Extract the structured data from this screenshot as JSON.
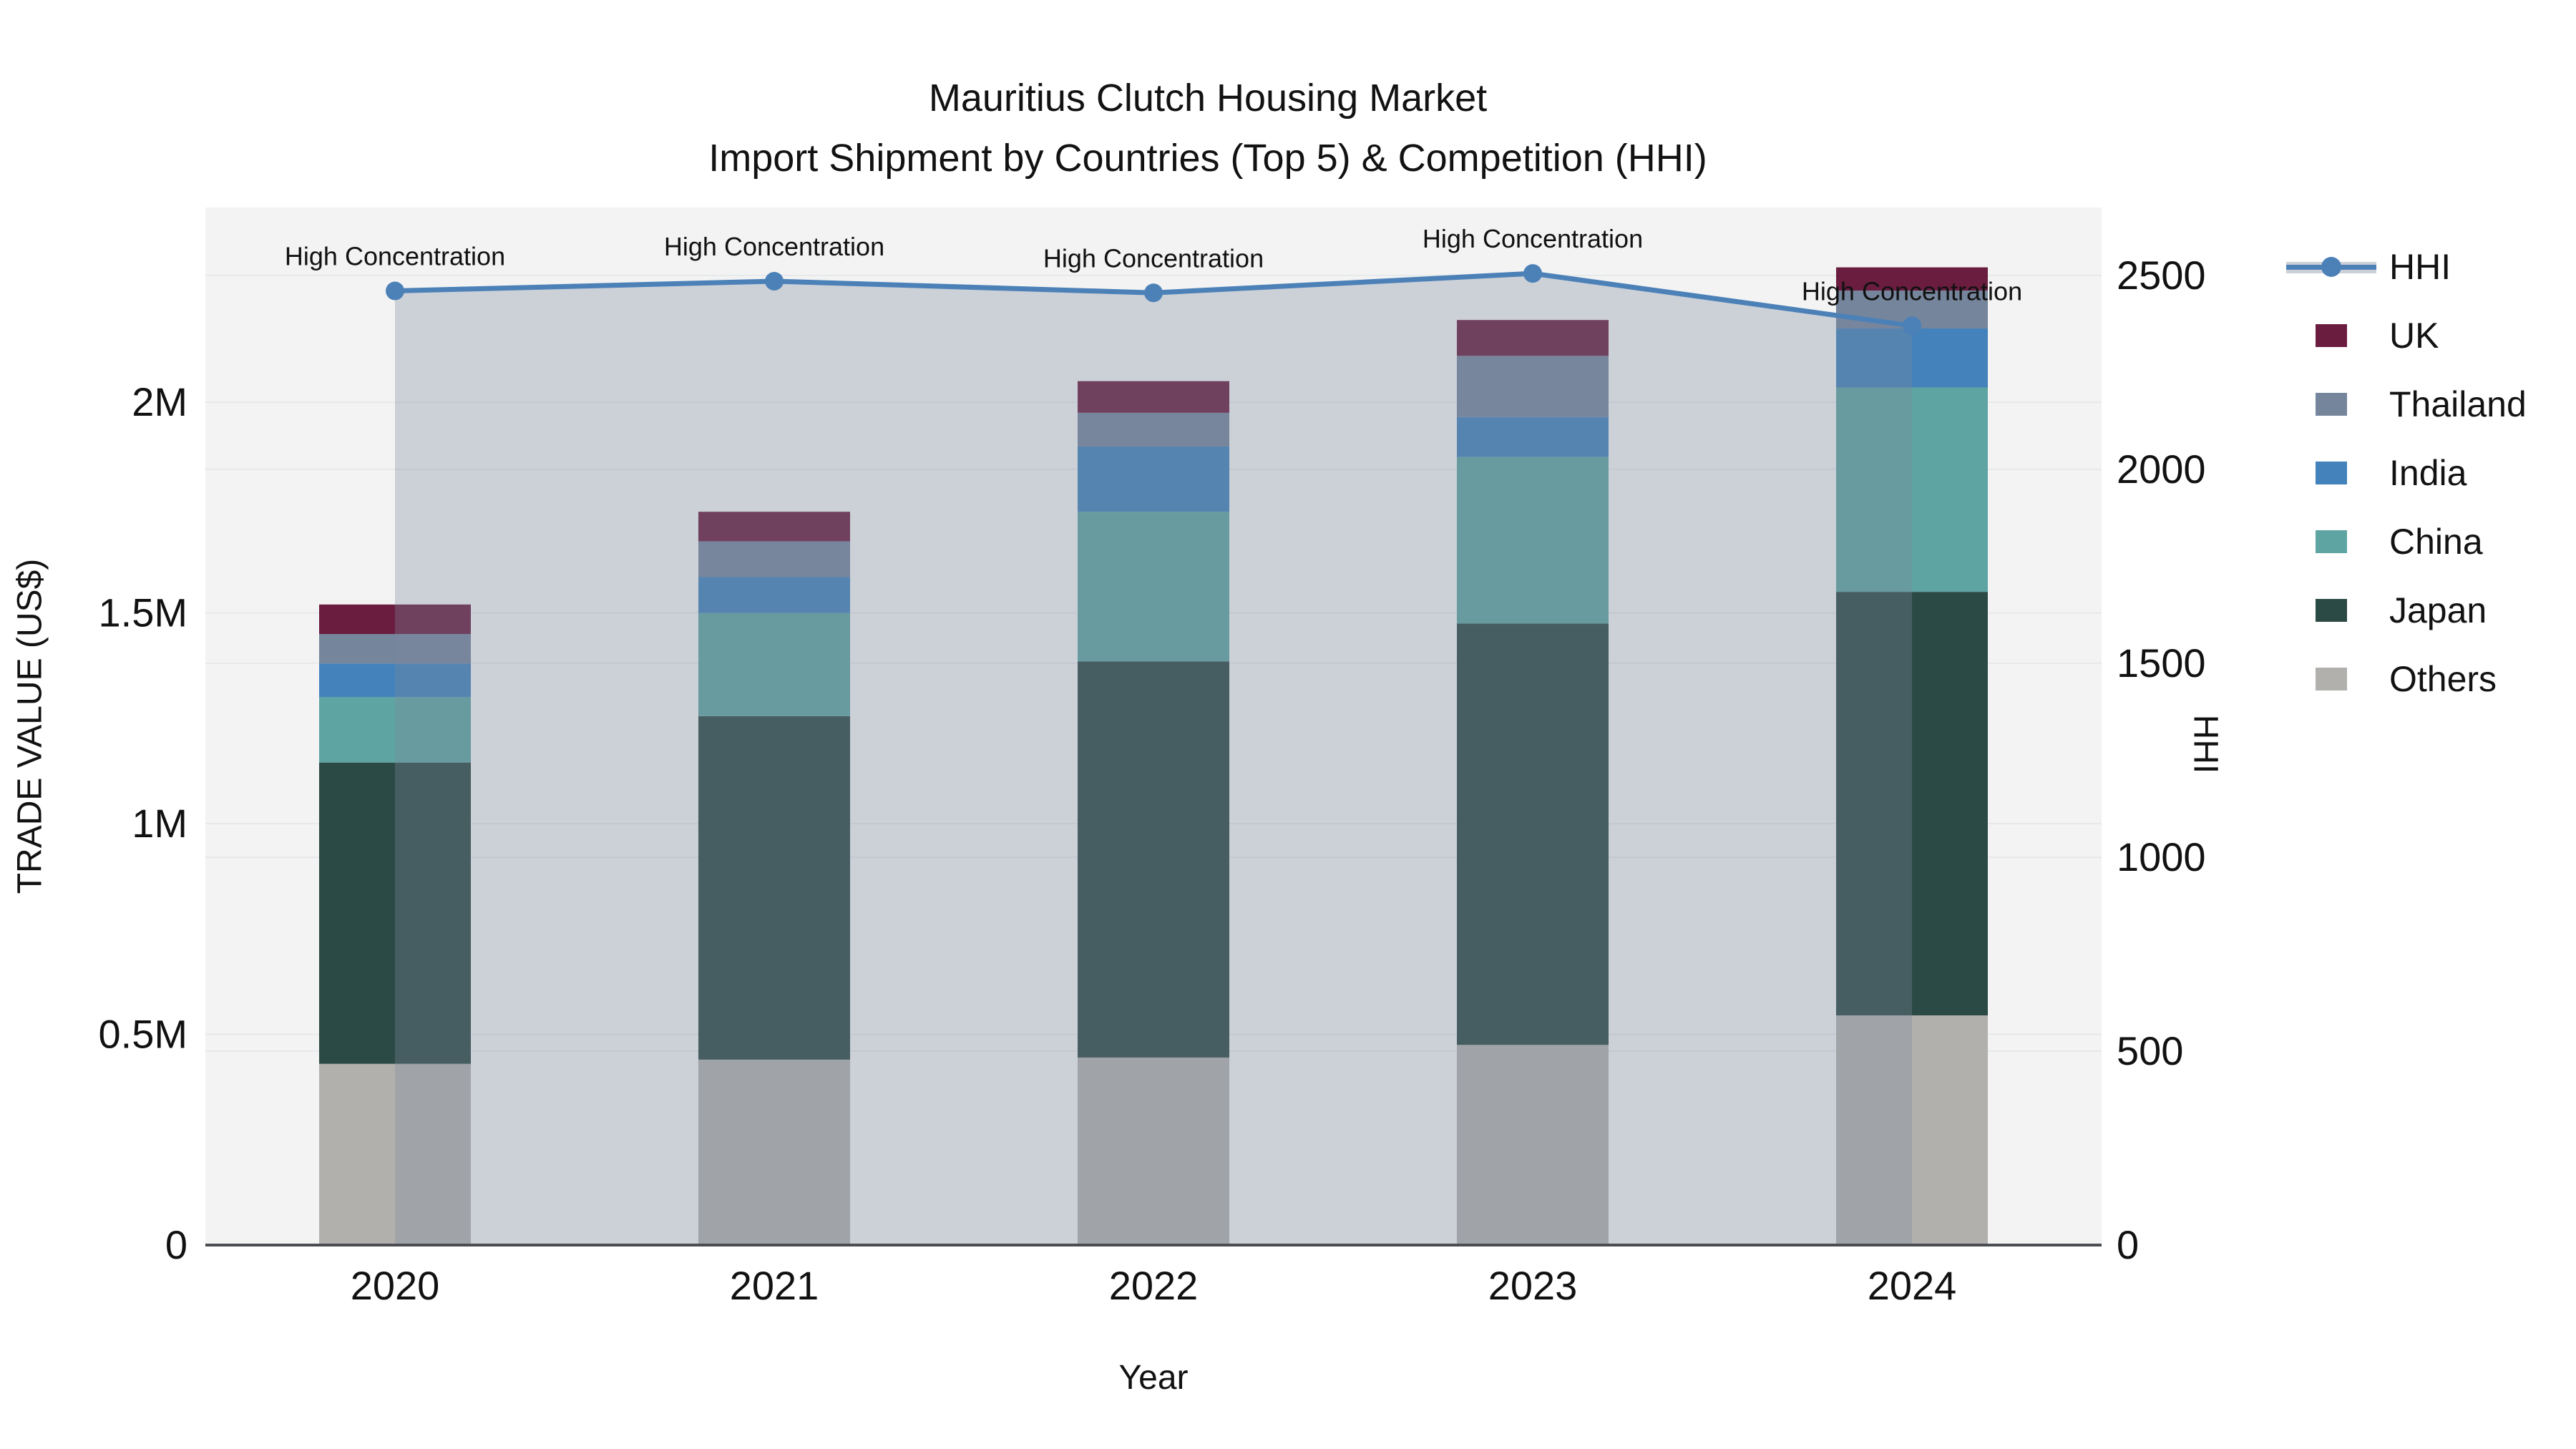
{
  "title": {
    "line1": "Mauritius Clutch Housing Market",
    "line2": "Import Shipment by Countries (Top 5) & Competition (HHI)"
  },
  "colors": {
    "uk": "#6b1d40",
    "thailand": "#75859b",
    "india": "#4382ba",
    "china": "#5ea4a2",
    "japan": "#2c4a45",
    "others": "#b2b0ac",
    "hhi": "#4c81b8",
    "hhi_fill": "rgba(124,138,158,0.33)",
    "plot_bg": "#f3f3f3",
    "grid": "#e6e8ea",
    "axis_line": "#4a4e53",
    "text": "#111111"
  },
  "legend": {
    "items": [
      {
        "label": "HHI",
        "type": "line",
        "color_key": "hhi"
      },
      {
        "label": "UK",
        "type": "swatch",
        "color_key": "uk"
      },
      {
        "label": "Thailand",
        "type": "swatch",
        "color_key": "thailand"
      },
      {
        "label": "India",
        "type": "swatch",
        "color_key": "india"
      },
      {
        "label": "China",
        "type": "swatch",
        "color_key": "china"
      },
      {
        "label": "Japan",
        "type": "swatch",
        "color_key": "japan"
      },
      {
        "label": "Others",
        "type": "swatch",
        "color_key": "others"
      }
    ]
  },
  "chart_data": {
    "type": "combo-stacked-bar-line",
    "title": "Mauritius Clutch Housing Market",
    "subtitle": "Import Shipment by Countries (Top 5) & Competition (HHI)",
    "categories": [
      "2020",
      "2021",
      "2022",
      "2023",
      "2024"
    ],
    "bar_series": [
      {
        "name": "Others",
        "color_key": "others",
        "values": [
          430000,
          440000,
          445000,
          475000,
          545000
        ]
      },
      {
        "name": "Japan",
        "color_key": "japan",
        "values": [
          715000,
          815000,
          940000,
          1000000,
          1005000
        ]
      },
      {
        "name": "China",
        "color_key": "china",
        "values": [
          155000,
          245000,
          355000,
          395000,
          485000
        ]
      },
      {
        "name": "India",
        "color_key": "india",
        "values": [
          80000,
          85000,
          155000,
          95000,
          140000
        ]
      },
      {
        "name": "Thailand",
        "color_key": "thailand",
        "values": [
          70000,
          85000,
          80000,
          145000,
          90000
        ]
      },
      {
        "name": "UK",
        "color_key": "uk",
        "values": [
          70000,
          70000,
          75000,
          85000,
          55000
        ]
      }
    ],
    "bar_totals": [
      1520000,
      1740000,
      2050000,
      2195000,
      2320000
    ],
    "line_series": {
      "name": "HHI",
      "color_key": "hhi",
      "fill": "tozeroy",
      "values": [
        2460,
        2485,
        2455,
        2505,
        2370
      ]
    },
    "annotations": [
      "High Concentration",
      "High Concentration",
      "High Concentration",
      "High Concentration",
      "High Concentration"
    ],
    "xlabel": "Year",
    "ylabel_left": "TRADE VALUE (US$)",
    "ylabel_right": "HHI",
    "yticks_left": [
      {
        "v": 0,
        "label": "0"
      },
      {
        "v": 500000,
        "label": "0.5M"
      },
      {
        "v": 1000000,
        "label": "1M"
      },
      {
        "v": 1500000,
        "label": "1.5M"
      },
      {
        "v": 2000000,
        "label": "2M"
      }
    ],
    "yticks_right": [
      {
        "v": 0,
        "label": "0"
      },
      {
        "v": 500,
        "label": "500"
      },
      {
        "v": 1000,
        "label": "1000"
      },
      {
        "v": 1500,
        "label": "1500"
      },
      {
        "v": 2000,
        "label": "2000"
      },
      {
        "v": 2500,
        "label": "2500"
      }
    ],
    "ylim_left": [
      0,
      2462000
    ],
    "ylim_right": [
      0,
      2675
    ],
    "grid": true,
    "legend_position": "right"
  }
}
